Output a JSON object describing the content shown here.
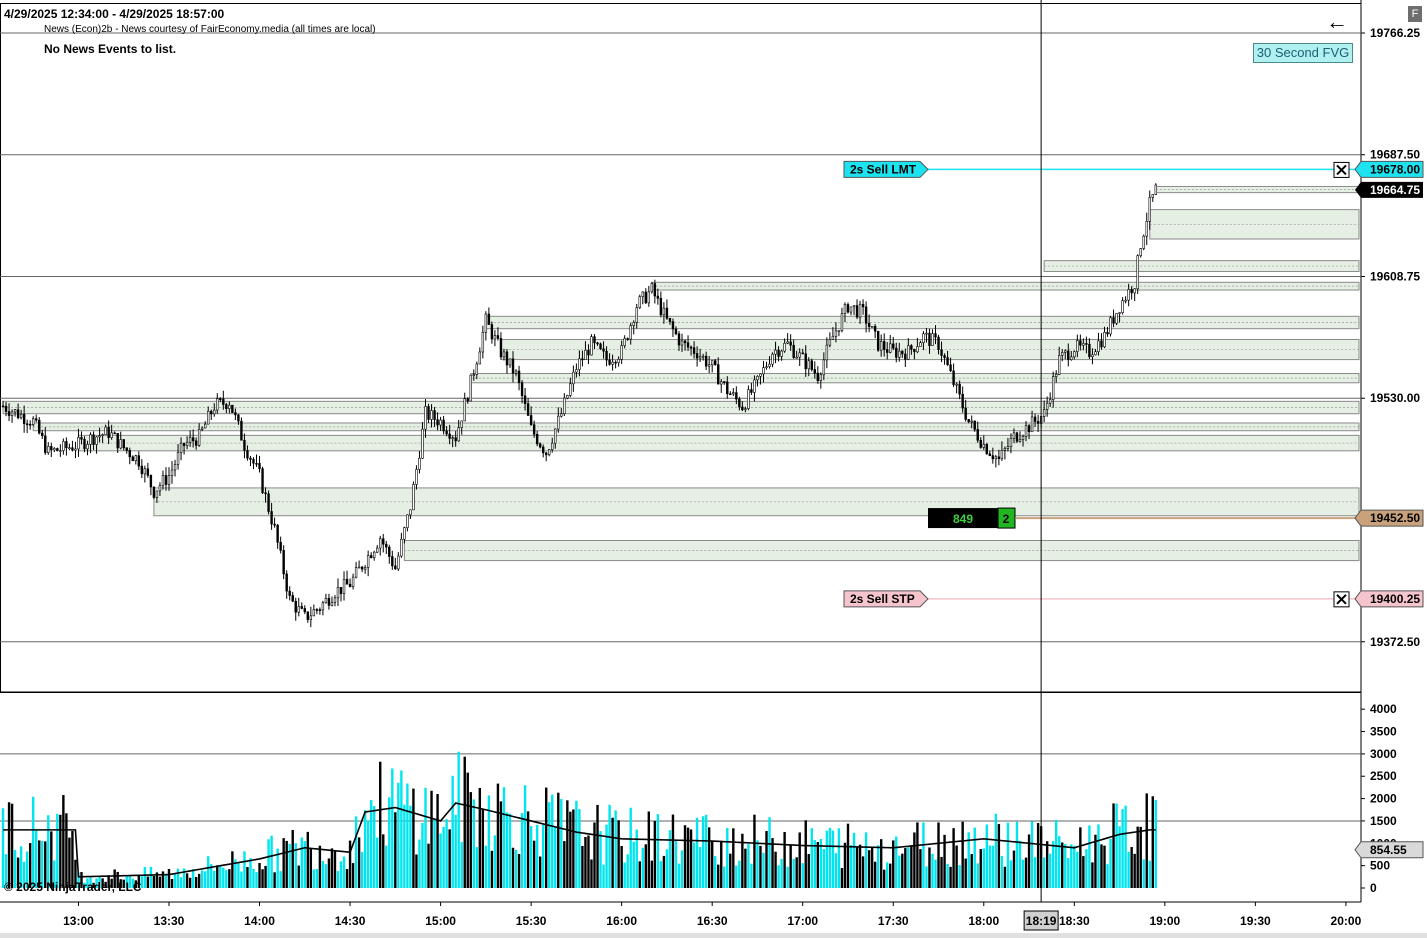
{
  "header": {
    "date_range": "4/29/2025 12:34:00 - 4/29/2025 18:57:00",
    "news_source": "News (Econ)2b - News courtesy of FairEconomy.media (all times are local)",
    "news_status": "No News Events to list.",
    "indicator_label": "30 Second FVG",
    "back_icon": "left-arrow-icon",
    "corner_button": "F"
  },
  "footer": {
    "copyright": "© 2025 NinjaTrader, LLC"
  },
  "colors": {
    "candle": "#000000",
    "volume_up": "#00e5ee",
    "volume_down": "#000000",
    "volume_ma": "#000000",
    "fvg_fill": "#e5efe3",
    "fvg_border": "#8a8a8a",
    "sell_lmt": "#1ce3ef",
    "sell_stp": "#f6c4cc",
    "position_line": "#c9a27c",
    "current_price_bg": "#000000",
    "grid": "#666666"
  },
  "chart_data": [
    {
      "type": "candlestick",
      "title": "",
      "y_axis": {
        "range": [
          19340,
          19785
        ],
        "tick_labels": [
          "19766.25",
          "19687.50",
          "19608.75",
          "19530.00",
          "19372.50"
        ]
      },
      "x_axis": {
        "range": [
          "12:34",
          "20:05"
        ],
        "tick_labels": [
          "13:00",
          "13:30",
          "14:00",
          "14:30",
          "15:00",
          "15:30",
          "16:00",
          "16:30",
          "17:00",
          "17:30",
          "18:00",
          "18:30",
          "19:00",
          "19:30",
          "20:00"
        ],
        "cursor_label": "18:19"
      },
      "price_path": [
        [
          "12:35",
          19525
        ],
        [
          "12:45",
          19515
        ],
        [
          "12:50",
          19495
        ],
        [
          "13:00",
          19500
        ],
        [
          "13:05",
          19505
        ],
        [
          "13:10",
          19508
        ],
        [
          "13:15",
          19498
        ],
        [
          "13:20",
          19490
        ],
        [
          "13:25",
          19470
        ],
        [
          "13:30",
          19480
        ],
        [
          "13:35",
          19500
        ],
        [
          "13:40",
          19505
        ],
        [
          "13:45",
          19525
        ],
        [
          "13:50",
          19528
        ],
        [
          "13:55",
          19500
        ],
        [
          "14:00",
          19480
        ],
        [
          "14:05",
          19445
        ],
        [
          "14:10",
          19400
        ],
        [
          "14:15",
          19388
        ],
        [
          "14:20",
          19395
        ],
        [
          "14:25",
          19405
        ],
        [
          "14:30",
          19410
        ],
        [
          "14:35",
          19425
        ],
        [
          "14:40",
          19440
        ],
        [
          "14:45",
          19420
        ],
        [
          "14:50",
          19460
        ],
        [
          "14:55",
          19520
        ],
        [
          "15:00",
          19515
        ],
        [
          "15:05",
          19505
        ],
        [
          "15:10",
          19540
        ],
        [
          "15:15",
          19580
        ],
        [
          "15:20",
          19560
        ],
        [
          "15:25",
          19545
        ],
        [
          "15:30",
          19510
        ],
        [
          "15:35",
          19495
        ],
        [
          "15:40",
          19520
        ],
        [
          "15:45",
          19550
        ],
        [
          "15:50",
          19565
        ],
        [
          "15:55",
          19555
        ],
        [
          "16:00",
          19560
        ],
        [
          "16:05",
          19590
        ],
        [
          "16:10",
          19600
        ],
        [
          "16:15",
          19580
        ],
        [
          "16:20",
          19565
        ],
        [
          "16:25",
          19560
        ],
        [
          "16:30",
          19550
        ],
        [
          "16:35",
          19535
        ],
        [
          "16:40",
          19525
        ],
        [
          "16:45",
          19540
        ],
        [
          "16:50",
          19560
        ],
        [
          "16:55",
          19565
        ],
        [
          "17:00",
          19555
        ],
        [
          "17:05",
          19545
        ],
        [
          "17:10",
          19570
        ],
        [
          "17:15",
          19590
        ],
        [
          "17:20",
          19585
        ],
        [
          "17:25",
          19565
        ],
        [
          "17:30",
          19560
        ],
        [
          "17:35",
          19560
        ],
        [
          "17:40",
          19570
        ],
        [
          "17:45",
          19565
        ],
        [
          "17:50",
          19540
        ],
        [
          "17:55",
          19515
        ],
        [
          "18:00",
          19500
        ],
        [
          "18:05",
          19490
        ],
        [
          "18:10",
          19505
        ],
        [
          "18:15",
          19512
        ],
        [
          "18:20",
          19520
        ],
        [
          "18:25",
          19555
        ],
        [
          "18:30",
          19563
        ],
        [
          "18:35",
          19560
        ],
        [
          "18:40",
          19570
        ],
        [
          "18:45",
          19590
        ],
        [
          "18:50",
          19605
        ],
        [
          "18:52",
          19630
        ],
        [
          "18:55",
          19655
        ],
        [
          "18:57",
          19664.75
        ]
      ],
      "fvg_zones": [
        [
          19663,
          19667
        ],
        [
          19633,
          19652
        ],
        [
          19612,
          19619
        ],
        [
          19600,
          19605
        ],
        [
          19575,
          19583
        ],
        [
          19555,
          19568
        ],
        [
          19540,
          19546
        ],
        [
          19520,
          19528
        ],
        [
          19509,
          19514
        ],
        [
          19496,
          19506
        ],
        [
          19454,
          19472
        ],
        [
          19425,
          19438
        ]
      ],
      "orders": [
        {
          "label": "2s  Sell LMT",
          "price": "19678.00",
          "close_icon": "close-x-icon"
        },
        {
          "label": "2s  Sell STP",
          "price": "19400.25",
          "close_icon": "close-x-icon"
        }
      ],
      "position": {
        "pnl_ticks": "849",
        "quantity": "2",
        "price": "19452.50"
      },
      "current_price": "19664.75"
    },
    {
      "type": "bar",
      "title": "",
      "y_axis": {
        "range": [
          0,
          4250
        ],
        "tick_labels": [
          "4000",
          "3500",
          "3000",
          "2500",
          "2000",
          "1500",
          "1000",
          "500",
          "0"
        ]
      },
      "series": [
        {
          "name": "",
          "values_by_hour": [
            [
              "13:00",
              250
            ],
            [
              "13:30",
              300
            ],
            [
              "14:00",
              650
            ],
            [
              "14:15",
              900
            ],
            [
              "14:30",
              800
            ],
            [
              "14:35",
              1700
            ],
            [
              "14:45",
              1800
            ],
            [
              "15:00",
              1500
            ],
            [
              "15:05",
              1900
            ],
            [
              "15:15",
              1750
            ],
            [
              "15:30",
              1500
            ],
            [
              "15:45",
              1250
            ],
            [
              "16:00",
              1100
            ],
            [
              "16:30",
              1050
            ],
            [
              "17:00",
              950
            ],
            [
              "17:30",
              900
            ],
            [
              "17:45",
              1000
            ],
            [
              "18:00",
              1100
            ],
            [
              "18:15",
              1000
            ],
            [
              "18:30",
              900
            ],
            [
              "18:45",
              1200
            ],
            [
              "18:55",
              1300
            ]
          ]
        }
      ],
      "current_value": "854.55"
    }
  ]
}
